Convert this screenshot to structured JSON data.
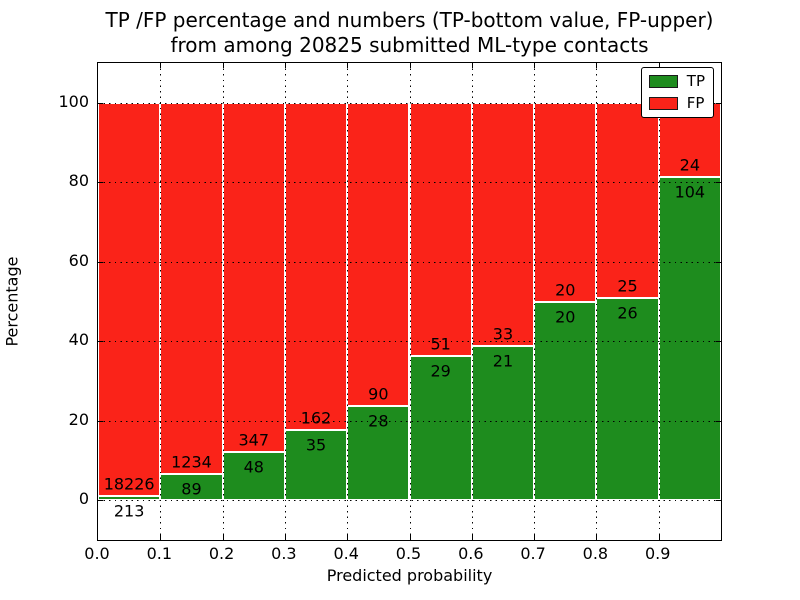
{
  "title": {
    "line1": "TP /FP percentage and numbers (TP-bottom value, FP-upper)",
    "line2": "from among 20825 submitted ML-type contacts"
  },
  "chart_data": {
    "type": "bar",
    "stacked": true,
    "normalized": "each bar scaled to 100%",
    "title": "TP /FP percentage and numbers (TP-bottom value, FP-upper) from among 20825 submitted ML-type contacts",
    "xlabel": "Predicted probability",
    "ylabel": "Percentage",
    "total_contacts": 20825,
    "categories": [
      "0.0-0.1",
      "0.1-0.2",
      "0.2-0.3",
      "0.3-0.4",
      "0.4-0.5",
      "0.5-0.6",
      "0.6-0.7",
      "0.7-0.8",
      "0.8-0.9",
      "0.9-1.0"
    ],
    "x_ticks": [
      "0.0",
      "0.1",
      "0.2",
      "0.3",
      "0.4",
      "0.5",
      "0.6",
      "0.7",
      "0.8",
      "0.9"
    ],
    "y_ticks": [
      0,
      20,
      40,
      60,
      80,
      100
    ],
    "xlim": [
      0.0,
      1.0
    ],
    "ylim": [
      -10,
      110
    ],
    "grid": "dotted black, horizontal at y-ticks and vertical at x-ticks",
    "legend_position": "upper right",
    "series": [
      {
        "name": "TP",
        "color": "#1e8c1e",
        "counts": [
          213,
          89,
          48,
          35,
          28,
          29,
          21,
          20,
          26,
          104
        ]
      },
      {
        "name": "FP",
        "color": "#fa2319",
        "counts": [
          18226,
          1234,
          347,
          162,
          90,
          51,
          33,
          20,
          25,
          24
        ]
      }
    ],
    "tp_percent_of_bar": [
      1.16,
      6.73,
      12.15,
      17.77,
      23.73,
      36.25,
      38.89,
      50.0,
      50.98,
      81.25
    ],
    "bar_edge_color": "#ffffff"
  }
}
